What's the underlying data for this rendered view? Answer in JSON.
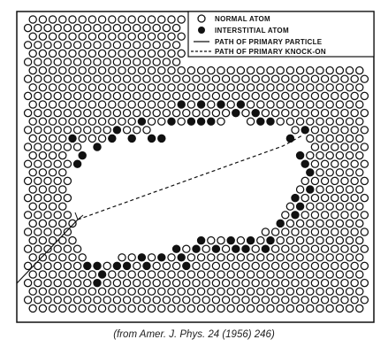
{
  "legend": {
    "items": [
      {
        "symbol": "open-circle",
        "label": "NORMAL  ATOM"
      },
      {
        "symbol": "filled-circle",
        "label": "INTERSTITIAL  ATOM"
      },
      {
        "symbol": "solid-line",
        "label": "PATH  OF  PRIMARY  PARTICLE"
      },
      {
        "symbol": "dashed-line",
        "label": "PATH  OF  PRIMARY   KNOCK-ON"
      }
    ]
  },
  "caption": "(from Amer. J. Phys. 24 (1956) 246)"
}
